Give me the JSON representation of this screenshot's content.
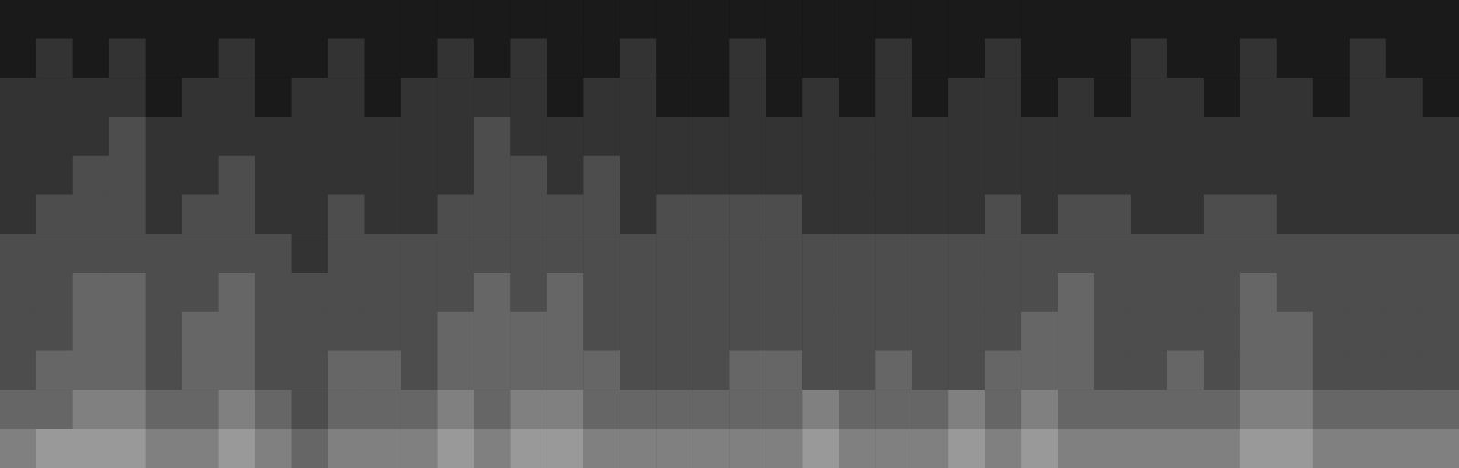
{
  "chart_data": {
    "type": "heatmap",
    "tick_labels": false,
    "zlim": [
      0,
      10
    ],
    "cells": [
      [
        1,
        1,
        1,
        1,
        1,
        1,
        1,
        1,
        1,
        1,
        1,
        1,
        1,
        1,
        1,
        1,
        1,
        1,
        1,
        1,
        1,
        1,
        1,
        1,
        1,
        1,
        1,
        1,
        1,
        1,
        1,
        1,
        1,
        1,
        1,
        1,
        1,
        1,
        1,
        1
      ],
      [
        1,
        2,
        1,
        2,
        1,
        1,
        2,
        1,
        1,
        2,
        1,
        1,
        2,
        1,
        2,
        1,
        1,
        2,
        1,
        1,
        2,
        1,
        1,
        1,
        2,
        1,
        1,
        2,
        1,
        1,
        1,
        2,
        1,
        1,
        2,
        1,
        1,
        2,
        1,
        1
      ],
      [
        2,
        2,
        2,
        2,
        1,
        2,
        2,
        1,
        2,
        2,
        1,
        2,
        2,
        2,
        2,
        1,
        2,
        2,
        1,
        1,
        2,
        1,
        2,
        1,
        2,
        1,
        2,
        2,
        1,
        2,
        1,
        2,
        2,
        1,
        2,
        2,
        1,
        2,
        2,
        1
      ],
      [
        2,
        2,
        2,
        3,
        2,
        2,
        2,
        2,
        2,
        2,
        2,
        2,
        2,
        3,
        2,
        2,
        2,
        2,
        2,
        2,
        2,
        2,
        2,
        2,
        2,
        2,
        2,
        2,
        2,
        2,
        2,
        2,
        2,
        2,
        2,
        2,
        2,
        2,
        2,
        2
      ],
      [
        2,
        2,
        3,
        3,
        2,
        2,
        3,
        2,
        2,
        2,
        2,
        2,
        2,
        3,
        3,
        2,
        3,
        2,
        2,
        2,
        2,
        2,
        2,
        2,
        2,
        2,
        2,
        2,
        2,
        2,
        2,
        2,
        2,
        2,
        2,
        2,
        2,
        2,
        2,
        2
      ],
      [
        2,
        3,
        3,
        3,
        2,
        3,
        3,
        2,
        2,
        3,
        2,
        2,
        3,
        3,
        3,
        3,
        3,
        2,
        3,
        3,
        3,
        3,
        2,
        2,
        2,
        2,
        2,
        3,
        2,
        3,
        3,
        2,
        2,
        3,
        3,
        2,
        2,
        2,
        2,
        2
      ],
      [
        3,
        3,
        3,
        3,
        3,
        3,
        3,
        3,
        2,
        3,
        3,
        3,
        3,
        3,
        3,
        3,
        3,
        3,
        3,
        3,
        3,
        3,
        3,
        3,
        3,
        3,
        3,
        3,
        3,
        3,
        3,
        3,
        3,
        3,
        3,
        3,
        3,
        3,
        3,
        3
      ],
      [
        3,
        3,
        4,
        4,
        3,
        3,
        4,
        3,
        3,
        3,
        3,
        3,
        3,
        4,
        3,
        4,
        3,
        3,
        3,
        3,
        3,
        3,
        3,
        3,
        3,
        3,
        3,
        3,
        3,
        4,
        3,
        3,
        3,
        3,
        4,
        3,
        3,
        3,
        3,
        3
      ],
      [
        3,
        3,
        4,
        4,
        3,
        4,
        4,
        3,
        3,
        3,
        3,
        3,
        4,
        4,
        4,
        4,
        3,
        3,
        3,
        3,
        3,
        3,
        3,
        3,
        3,
        3,
        3,
        3,
        4,
        4,
        3,
        3,
        3,
        3,
        4,
        4,
        3,
        3,
        3,
        3
      ],
      [
        3,
        4,
        4,
        4,
        3,
        4,
        4,
        3,
        3,
        4,
        4,
        3,
        4,
        4,
        4,
        4,
        4,
        3,
        3,
        3,
        4,
        4,
        3,
        3,
        4,
        3,
        3,
        4,
        4,
        4,
        3,
        3,
        4,
        3,
        4,
        4,
        3,
        3,
        3,
        3
      ],
      [
        4,
        4,
        5,
        5,
        4,
        4,
        5,
        4,
        3,
        4,
        4,
        4,
        5,
        4,
        5,
        5,
        4,
        4,
        4,
        4,
        4,
        4,
        5,
        4,
        4,
        4,
        5,
        4,
        5,
        4,
        4,
        4,
        4,
        4,
        5,
        5,
        4,
        4,
        4,
        4
      ],
      [
        5,
        6,
        6,
        6,
        5,
        5,
        6,
        5,
        4,
        5,
        5,
        5,
        6,
        5,
        6,
        6,
        5,
        5,
        5,
        5,
        5,
        5,
        6,
        5,
        5,
        5,
        6,
        5,
        6,
        5,
        5,
        5,
        5,
        5,
        6,
        6,
        5,
        5,
        5,
        5
      ]
    ]
  }
}
